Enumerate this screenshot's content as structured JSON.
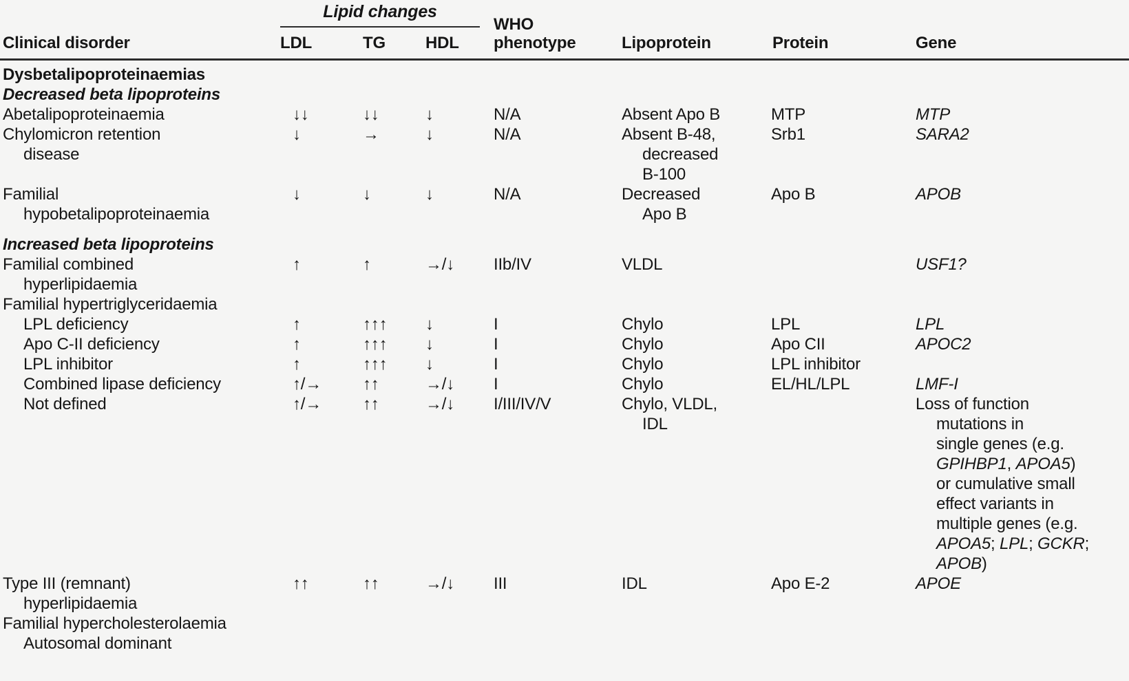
{
  "table": {
    "header": {
      "clinical_disorder": "Clinical disorder",
      "lipid_changes": "Lipid changes",
      "ldl": "LDL",
      "tg": "TG",
      "hdl": "HDL",
      "who_phenotype": "WHO\nphenotype",
      "lipoprotein": "Lipoprotein",
      "protein": "Protein",
      "gene": "Gene"
    },
    "rows": [
      {
        "type": "section",
        "label": "Dysbetalipoproteinaemias"
      },
      {
        "type": "subsection",
        "label": "Decreased beta lipoproteins"
      },
      {
        "type": "data",
        "disorder": "Abetalipoproteinaemia",
        "ldl": "↓↓",
        "tg": "↓↓",
        "hdl": "↓",
        "who": "N/A",
        "lipoprotein": "Absent Apo B",
        "protein": "MTP",
        "gene": [
          {
            "text": "MTP",
            "italic": true
          }
        ]
      },
      {
        "type": "data",
        "disorder": "Chylomicron retention\ndisease",
        "ldl": "↓",
        "tg": "→",
        "hdl": "↓",
        "who": "N/A",
        "lipoprotein": "Absent B-48,\ndecreased\nB-100",
        "protein": "Srb1",
        "gene": [
          {
            "text": "SARA2",
            "italic": true
          }
        ]
      },
      {
        "type": "data",
        "disorder": "Familial\nhypobetalipoproteinaemia",
        "ldl": "↓",
        "tg": "↓",
        "hdl": "↓",
        "who": "N/A",
        "lipoprotein": "Decreased\nApo B",
        "protein": "Apo B",
        "gene": [
          {
            "text": "APOB",
            "italic": true
          }
        ]
      },
      {
        "type": "subsection",
        "label": "Increased beta lipoproteins",
        "gap_before": true
      },
      {
        "type": "data",
        "disorder": "Familial combined\nhyperlipidaemia",
        "ldl": "↑",
        "tg": "↑",
        "hdl": "→/↓",
        "who": "IIb/IV",
        "lipoprotein": "VLDL",
        "protein": "",
        "gene": [
          {
            "text": "USF1?",
            "italic": true
          }
        ]
      },
      {
        "type": "data",
        "disorder": "Familial hypertriglyceridaemia",
        "ldl": "",
        "tg": "",
        "hdl": "",
        "who": "",
        "lipoprotein": "",
        "protein": "",
        "gene": []
      },
      {
        "type": "data",
        "indent": true,
        "disorder": "LPL deficiency",
        "ldl": "↑",
        "tg": "↑↑↑",
        "hdl": "↓",
        "who": "I",
        "lipoprotein": "Chylo",
        "protein": "LPL",
        "gene": [
          {
            "text": "LPL",
            "italic": true
          }
        ]
      },
      {
        "type": "data",
        "indent": true,
        "disorder": "Apo C-II deficiency",
        "ldl": "↑",
        "tg": "↑↑↑",
        "hdl": "↓",
        "who": "I",
        "lipoprotein": "Chylo",
        "protein": "Apo CII",
        "gene": [
          {
            "text": "APOC2",
            "italic": true
          }
        ]
      },
      {
        "type": "data",
        "indent": true,
        "disorder": "LPL inhibitor",
        "ldl": "↑",
        "tg": "↑↑↑",
        "hdl": "↓",
        "who": "I",
        "lipoprotein": "Chylo",
        "protein": "LPL inhibitor",
        "gene": []
      },
      {
        "type": "data",
        "indent": true,
        "disorder": "Combined lipase deficiency",
        "ldl": "↑/→",
        "tg": "↑↑",
        "hdl": "→/↓",
        "who": "I",
        "lipoprotein": "Chylo",
        "protein": "EL/HL/LPL",
        "gene": [
          {
            "text": "LMF-I",
            "italic": true
          }
        ]
      },
      {
        "type": "data",
        "indent": true,
        "disorder": "Not defined",
        "ldl": "↑/→",
        "tg": "↑↑",
        "hdl": "→/↓",
        "who": "I/III/IV/V",
        "lipoprotein": "Chylo, VLDL,\nIDL",
        "protein": "",
        "gene": [
          {
            "text": "Loss of function\nmutations in\nsingle genes (e.g.\n",
            "italic": false
          },
          {
            "text": "GPIHBP1",
            "italic": true
          },
          {
            "text": ", ",
            "italic": false
          },
          {
            "text": "APOA5",
            "italic": true
          },
          {
            "text": ")\nor cumulative small\neffect variants in\nmultiple genes (e.g.\n",
            "italic": false
          },
          {
            "text": "APOA5",
            "italic": true
          },
          {
            "text": "; ",
            "italic": false
          },
          {
            "text": "LPL",
            "italic": true
          },
          {
            "text": "; ",
            "italic": false
          },
          {
            "text": "GCKR",
            "italic": true
          },
          {
            "text": ";\n",
            "italic": false
          },
          {
            "text": "APOB",
            "italic": true
          },
          {
            "text": ")",
            "italic": false
          }
        ]
      },
      {
        "type": "data",
        "disorder": "Type III (remnant)\nhyperlipidaemia",
        "ldl": "↑↑",
        "tg": "↑↑",
        "hdl": "→/↓",
        "who": "III",
        "lipoprotein": "IDL",
        "protein": "Apo E-2",
        "gene": [
          {
            "text": "APOE",
            "italic": true
          }
        ]
      },
      {
        "type": "data",
        "disorder": "Familial hypercholesterolaemia",
        "ldl": "",
        "tg": "",
        "hdl": "",
        "who": "",
        "lipoprotein": "",
        "protein": "",
        "gene": []
      },
      {
        "type": "data",
        "indent": true,
        "disorder": "Autosomal dominant",
        "ldl": "",
        "tg": "",
        "hdl": "",
        "who": "",
        "lipoprotein": "",
        "protein": "",
        "gene": []
      }
    ]
  }
}
